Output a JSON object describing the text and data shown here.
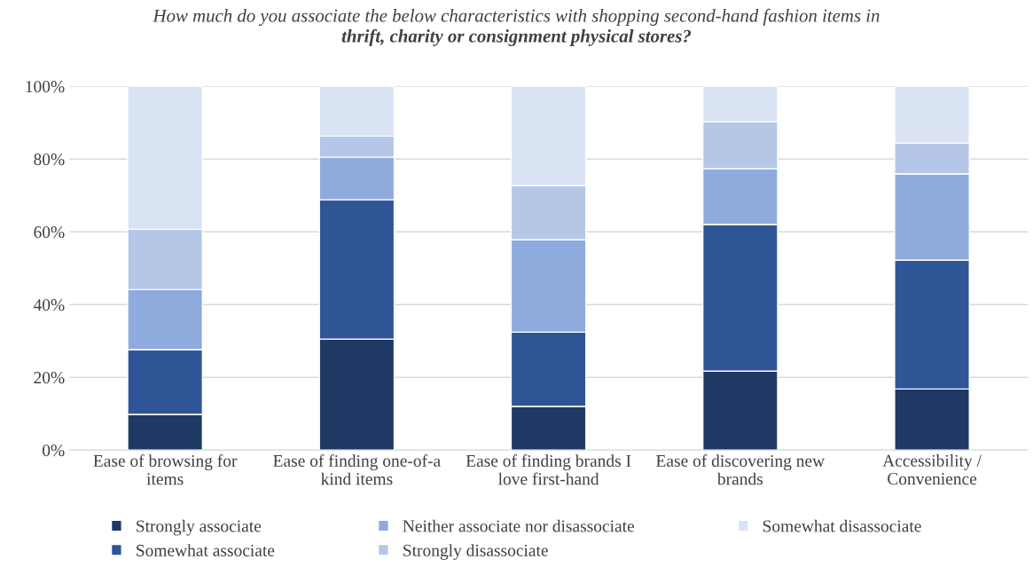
{
  "chart_data": {
    "type": "bar",
    "stacked": true,
    "title": "How much do you associate the below characteristics with shopping second-hand fashion items in\nthrift, charity or consignment physical stores?",
    "categories": [
      "Ease of browsing for\nitems",
      "Ease of finding one-of-a\nkind items",
      "Ease of finding brands I\nlove first-hand",
      "Ease of discovering new\nbrands",
      "Accessibility /\nConvenience"
    ],
    "series": [
      {
        "name": "Strongly associate",
        "color": "#203864",
        "values": [
          9.8,
          30.5,
          12.0,
          21.7,
          16.8
        ]
      },
      {
        "name": "Somewhat associate",
        "color": "#2f5597",
        "values": [
          17.8,
          38.3,
          20.4,
          40.3,
          35.4
        ]
      },
      {
        "name": "Neither associate nor disassociate",
        "color": "#8faadc",
        "values": [
          16.5,
          11.7,
          25.4,
          15.3,
          23.7
        ]
      },
      {
        "name": "Strongly disassociate",
        "color": "#b4c7e7",
        "values": [
          16.6,
          5.8,
          14.9,
          12.9,
          8.5
        ]
      },
      {
        "name": "Somewhat disassociate",
        "color": "#dae3f3",
        "values": [
          39.3,
          13.7,
          27.3,
          9.8,
          15.6
        ]
      }
    ],
    "ylim": [
      0,
      100
    ],
    "yticks": [
      {
        "value": 0,
        "label": "0%"
      },
      {
        "value": 20,
        "label": "20%"
      },
      {
        "value": 40,
        "label": "40%"
      },
      {
        "value": 60,
        "label": "60%"
      },
      {
        "value": 80,
        "label": "80%"
      },
      {
        "value": 100,
        "label": "100%"
      }
    ],
    "grid": "y",
    "legend": "bottom"
  }
}
